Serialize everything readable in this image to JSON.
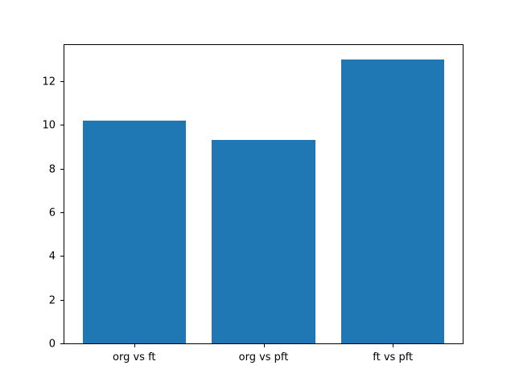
{
  "chart_data": {
    "type": "bar",
    "categories": [
      "org vs ft",
      "org vs pft",
      "ft vs pft"
    ],
    "values": [
      10.2,
      9.3,
      13.0
    ],
    "yticks": [
      0,
      2,
      4,
      6,
      8,
      10,
      12
    ],
    "ylim": [
      0,
      13.65
    ],
    "xlim": [
      -0.54,
      2.54
    ],
    "bar_width": 0.8,
    "bar_color": "#1f77b4",
    "axis_color": "#000000",
    "background_color": "#ffffff",
    "grid": false,
    "legend": null
  }
}
